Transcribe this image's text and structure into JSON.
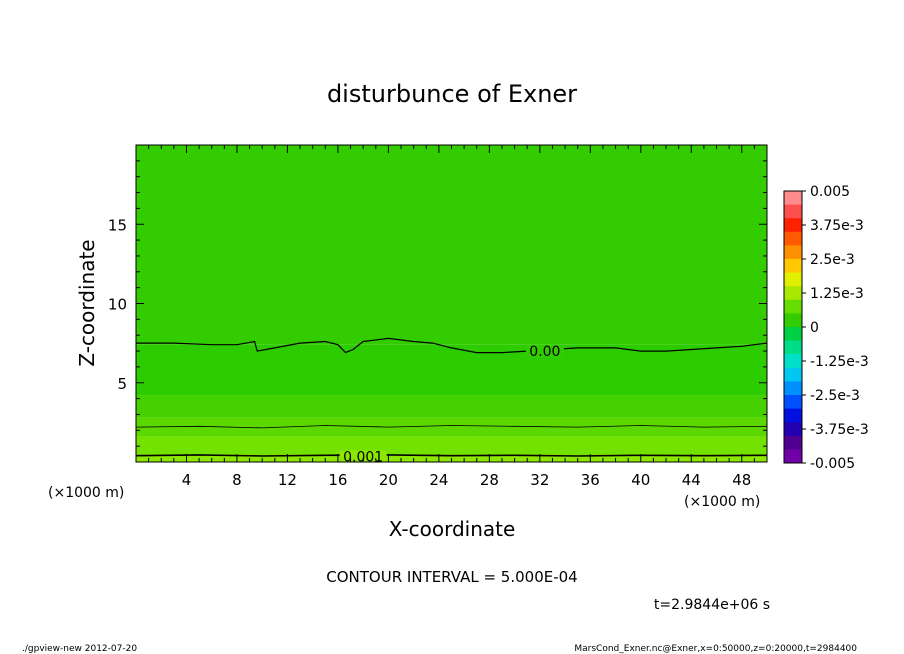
{
  "chart_data": {
    "type": "contour",
    "title": "disturbunce of Exner",
    "xlabel": "X-coordinate",
    "ylabel": "Z-coordinate",
    "x_unit": "(×1000 m)",
    "y_unit": "(×1000 m)",
    "xlim": [
      0,
      50
    ],
    "ylim": [
      0,
      20
    ],
    "x_ticks": [
      4,
      8,
      12,
      16,
      20,
      24,
      28,
      32,
      36,
      40,
      44,
      48
    ],
    "y_ticks": [
      5,
      10,
      15
    ],
    "contour_interval_label": "CONTOUR INTERVAL = 5.000E-04",
    "time_label": "t=2.9844e+06 s",
    "contour_labels": [
      {
        "text": "0.00",
        "x": 32.4,
        "z": 7.0
      },
      {
        "text": "0.001",
        "x": 18.0,
        "z": 0.35
      }
    ],
    "zero_contour": {
      "x": [
        0,
        3,
        6,
        8,
        9.4,
        9.6,
        11,
        13,
        15,
        16,
        16.6,
        17.2,
        18,
        20,
        22,
        23.5,
        25,
        27,
        29,
        31,
        33,
        35,
        36,
        38,
        40,
        42,
        44,
        46,
        48,
        50
      ],
      "z": [
        7.5,
        7.5,
        7.4,
        7.4,
        7.6,
        7.0,
        7.2,
        7.5,
        7.6,
        7.4,
        6.9,
        7.1,
        7.6,
        7.8,
        7.6,
        7.5,
        7.2,
        6.9,
        6.9,
        7.0,
        7.1,
        7.2,
        7.2,
        7.2,
        7.0,
        7.0,
        7.1,
        7.2,
        7.3,
        7.5
      ]
    },
    "lower_contours": [
      {
        "x": [
          0,
          5,
          10,
          15,
          20,
          25,
          30,
          35,
          40,
          45,
          50
        ],
        "z": [
          2.2,
          2.25,
          2.15,
          2.3,
          2.2,
          2.3,
          2.25,
          2.2,
          2.3,
          2.2,
          2.25
        ]
      },
      {
        "x": [
          0,
          5,
          10,
          15,
          20,
          25,
          30,
          35,
          40,
          45,
          50
        ],
        "z": [
          0.4,
          0.45,
          0.38,
          0.42,
          0.45,
          0.4,
          0.42,
          0.38,
          0.42,
          0.4,
          0.42
        ]
      }
    ],
    "bands": [
      {
        "z0": 0.0,
        "z1": 0.4,
        "color": "#8ce800"
      },
      {
        "z0": 0.4,
        "z1": 1.6,
        "color": "#73e200"
      },
      {
        "z0": 1.6,
        "z1": 2.8,
        "color": "#5ad800"
      },
      {
        "z0": 2.8,
        "z1": 4.2,
        "color": "#45d100"
      },
      {
        "z0": 4.2,
        "z1": 7.4,
        "color": "#2ccc00"
      },
      {
        "z0": 7.4,
        "z1": 20.0,
        "color": "#33cc00"
      }
    ],
    "colorbar": {
      "labels": [
        "0.005",
        "3.75e-3",
        "2.5e-3",
        "1.25e-3",
        "0",
        "-1.25e-3",
        "-2.5e-3",
        "-3.75e-3",
        "-0.005"
      ],
      "colors_top_to_bottom": [
        "#ff8c8c",
        "#ff5050",
        "#ff2200",
        "#ff5a00",
        "#ff9000",
        "#ffc800",
        "#e0f000",
        "#a8e800",
        "#66dd00",
        "#33cc00",
        "#00d044",
        "#00dd88",
        "#00e0c8",
        "#00c8f0",
        "#0090ff",
        "#0050ff",
        "#0010e0",
        "#2000b0",
        "#500090",
        "#7000a8"
      ]
    }
  },
  "footer": {
    "left": "./gpview-new  2012-07-20",
    "right": "MarsCond_Exner.nc@Exner,x=0:50000,z=0:20000,t=2984400"
  }
}
